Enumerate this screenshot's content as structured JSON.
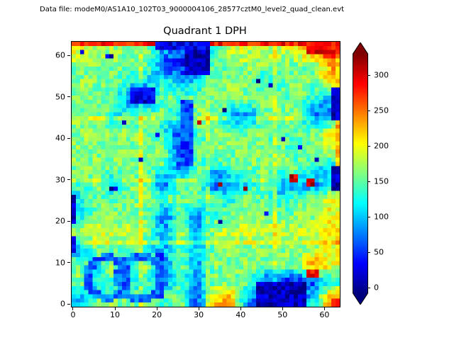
{
  "chart_data": {
    "type": "heatmap",
    "title": "Quadrant 1 DPH",
    "header_text": "Data file: modeM0/AS1A10_102T03_9000004106_28577cztM0_level2_quad_clean.evt",
    "xlabel": "",
    "ylabel": "",
    "x_range": [
      -0.5,
      63.5
    ],
    "y_range": [
      -0.5,
      63.5
    ],
    "x_ticks": [
      0,
      10,
      20,
      30,
      40,
      50,
      60
    ],
    "y_ticks": [
      0,
      10,
      20,
      30,
      40,
      50,
      60
    ],
    "colormap": "jet",
    "colorbar": {
      "ticks": [
        0,
        50,
        100,
        150,
        200,
        250,
        300
      ],
      "vmin": -8,
      "vmax": 330,
      "extend": "both"
    },
    "grid": {
      "rows": 16,
      "cols": 16,
      "order": "bottom-to-top",
      "cell_size_px": 4,
      "values": [
        [
          90,
          160,
          160,
          150,
          160,
          140,
          160,
          50,
          220,
          230,
          80,
          40,
          50,
          60,
          120,
          260
        ],
        [
          160,
          110,
          140,
          110,
          140,
          80,
          150,
          80,
          160,
          160,
          150,
          60,
          40,
          40,
          60,
          120
        ],
        [
          160,
          120,
          180,
          120,
          180,
          80,
          160,
          90,
          160,
          160,
          165,
          160,
          160,
          160,
          260,
          190
        ],
        [
          80,
          160,
          150,
          150,
          130,
          90,
          150,
          100,
          160,
          160,
          160,
          160,
          160,
          160,
          160,
          200
        ],
        [
          185,
          190,
          185,
          185,
          175,
          90,
          185,
          90,
          175,
          185,
          185,
          185,
          185,
          185,
          185,
          210
        ],
        [
          110,
          160,
          160,
          160,
          160,
          60,
          150,
          60,
          130,
          160,
          160,
          160,
          160,
          160,
          160,
          200
        ],
        [
          110,
          160,
          140,
          160,
          160,
          150,
          160,
          160,
          150,
          120,
          160,
          150,
          120,
          150,
          160,
          200
        ],
        [
          150,
          160,
          100,
          160,
          160,
          60,
          150,
          160,
          40,
          70,
          110,
          160,
          80,
          90,
          60,
          100
        ],
        [
          160,
          160,
          160,
          160,
          160,
          150,
          60,
          150,
          130,
          160,
          160,
          160,
          160,
          160,
          150,
          90
        ],
        [
          160,
          165,
          160,
          160,
          160,
          160,
          50,
          150,
          160,
          160,
          160,
          160,
          160,
          130,
          160,
          200
        ],
        [
          165,
          160,
          160,
          160,
          160,
          120,
          50,
          140,
          160,
          160,
          160,
          160,
          130,
          160,
          160,
          210
        ],
        [
          160,
          165,
          120,
          140,
          160,
          150,
          90,
          160,
          160,
          100,
          60,
          160,
          160,
          160,
          60,
          80
        ],
        [
          165,
          160,
          160,
          60,
          60,
          160,
          150,
          160,
          160,
          160,
          160,
          160,
          150,
          160,
          120,
          90
        ],
        [
          165,
          160,
          155,
          120,
          100,
          140,
          90,
          120,
          160,
          165,
          160,
          120,
          150,
          160,
          160,
          210
        ],
        [
          160,
          160,
          165,
          160,
          150,
          60,
          40,
          60,
          150,
          160,
          165,
          160,
          160,
          155,
          160,
          240
        ],
        [
          200,
          175,
          165,
          160,
          160,
          90,
          60,
          80,
          130,
          195,
          185,
          175,
          175,
          195,
          270,
          295
        ]
      ]
    },
    "module_boundaries": {
      "x": [
        16,
        32,
        48
      ],
      "y": [
        15,
        30,
        45
      ],
      "boost": 25
    },
    "overrides": [
      [
        0,
        63,
        64,
        1,
        285
      ],
      [
        20,
        62,
        13,
        2,
        30
      ],
      [
        56,
        61,
        8,
        3,
        290
      ],
      [
        63,
        34,
        1,
        26,
        230
      ],
      [
        62,
        45,
        2,
        8,
        12
      ],
      [
        62,
        28,
        2,
        6,
        12
      ],
      [
        0,
        20,
        1,
        7,
        10
      ],
      [
        0,
        13,
        1,
        4,
        20
      ],
      [
        27,
        56,
        6,
        6,
        10
      ],
      [
        14,
        49,
        6,
        4,
        25
      ],
      [
        26,
        34,
        3,
        16,
        55
      ],
      [
        20,
        2,
        2,
        12,
        60
      ],
      [
        44,
        0,
        12,
        6,
        12
      ],
      [
        35,
        29,
        1,
        1,
        310
      ],
      [
        41,
        28,
        1,
        1,
        310
      ],
      [
        52,
        30,
        2,
        2,
        305
      ],
      [
        56,
        29,
        2,
        2,
        305
      ],
      [
        30,
        44,
        1,
        1,
        310
      ],
      [
        56,
        7,
        3,
        2,
        295
      ],
      [
        2,
        61,
        1,
        1,
        15
      ],
      [
        8,
        60,
        2,
        1,
        15
      ],
      [
        44,
        54,
        1,
        1,
        15
      ],
      [
        47,
        53,
        1,
        1,
        15
      ],
      [
        36,
        47,
        1,
        1,
        15
      ],
      [
        12,
        44,
        1,
        1,
        15
      ],
      [
        20,
        41,
        1,
        1,
        15
      ],
      [
        50,
        40,
        1,
        1,
        15
      ],
      [
        54,
        38,
        1,
        1,
        15
      ],
      [
        9,
        28,
        2,
        1,
        15
      ],
      [
        35,
        20,
        1,
        1,
        15
      ],
      [
        46,
        22,
        1,
        1,
        15
      ],
      [
        58,
        35,
        1,
        1,
        15
      ],
      [
        16,
        35,
        1,
        1,
        15
      ]
    ],
    "rings": [
      {
        "cx": 8.5,
        "cy": 7,
        "r": 4.8,
        "value": 70
      },
      {
        "cx": 16.5,
        "cy": 7,
        "r": 5.2,
        "value": 70
      }
    ],
    "noise_amplitude": 54
  }
}
